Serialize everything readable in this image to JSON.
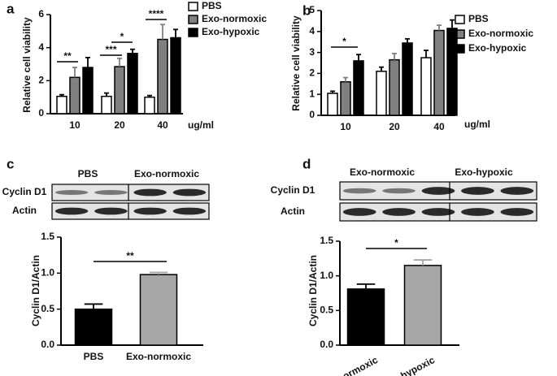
{
  "chart_data": [
    {
      "type": "bar",
      "panel_label": "a",
      "y_label": "Relative cell viability",
      "x_label": "ug/ml",
      "categories": [
        "10",
        "20",
        "40"
      ],
      "series": [
        {
          "name": "PBS",
          "color": "#ffffff",
          "values": [
            1.05,
            1.05,
            1.0
          ],
          "errors": [
            0.1,
            0.2,
            0.1
          ]
        },
        {
          "name": "Exo-normoxic",
          "color": "#808080",
          "values": [
            2.2,
            2.85,
            4.5
          ],
          "errors": [
            0.6,
            0.5,
            0.9
          ]
        },
        {
          "name": "Exo-hypoxic",
          "color": "#000000",
          "values": [
            2.8,
            3.65,
            4.6
          ],
          "errors": [
            0.6,
            0.25,
            0.5
          ]
        }
      ],
      "ylim": [
        0,
        6
      ],
      "yticks": [
        0,
        2,
        4,
        6
      ],
      "annotations": [
        "**",
        "***",
        "*",
        "****"
      ]
    },
    {
      "type": "bar",
      "panel_label": "b",
      "y_label": "Relative cell viability",
      "x_label": "ug/ml",
      "categories": [
        "10",
        "20",
        "40"
      ],
      "series": [
        {
          "name": "PBS",
          "color": "#ffffff",
          "values": [
            1.05,
            2.1,
            2.75
          ],
          "errors": [
            0.1,
            0.2,
            0.35
          ]
        },
        {
          "name": "Exo-normoxic",
          "color": "#808080",
          "values": [
            1.6,
            2.65,
            4.05
          ],
          "errors": [
            0.2,
            0.3,
            0.25
          ]
        },
        {
          "name": "Exo-hypoxic",
          "color": "#000000",
          "values": [
            2.6,
            3.45,
            4.15
          ],
          "errors": [
            0.3,
            0.2,
            0.4
          ]
        }
      ],
      "ylim": [
        0,
        5
      ],
      "yticks": [
        0,
        1,
        2,
        3,
        4,
        5
      ],
      "annotations": [
        "*"
      ]
    },
    {
      "type": "bar",
      "panel_label": "c",
      "blot": {
        "groups": [
          "PBS",
          "Exo-normoxic"
        ],
        "rows": [
          "Cyclin D1",
          "Actin"
        ]
      },
      "y_label": "Cyclin D1/Actin",
      "categories": [
        "PBS",
        "Exo-normoxic"
      ],
      "values": [
        0.5,
        0.98
      ],
      "errors": [
        0.07,
        0.03
      ],
      "colors": [
        "#000000",
        "#a6a6a6"
      ],
      "ylim": [
        0,
        1.5
      ],
      "yticks": [
        {
          "value": 0,
          "label": "0.0"
        },
        0.5,
        {
          "value": 1,
          "label": "1.0"
        },
        1.5
      ],
      "annotations": [
        "**"
      ]
    },
    {
      "type": "bar",
      "panel_label": "d",
      "blot": {
        "groups": [
          "Exo-normoxic",
          "Exo-hypoxic"
        ],
        "rows": [
          "Cyclin D1",
          "Actin"
        ]
      },
      "y_label": "Cyclin D1/Actin",
      "categories": [
        "Exo-normoxic",
        "Exo-hypoxic"
      ],
      "values": [
        0.81,
        1.15
      ],
      "errors": [
        0.07,
        0.08
      ],
      "colors": [
        "#000000",
        "#a6a6a6"
      ],
      "ylim": [
        0,
        1.5
      ],
      "yticks": [
        {
          "value": 0,
          "label": "0.0"
        },
        0.5,
        {
          "value": 1,
          "label": "1.0"
        },
        1.5
      ],
      "annotations": [
        "*"
      ]
    }
  ]
}
